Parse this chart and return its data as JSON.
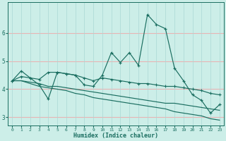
{
  "xlabel": "Humidex (Indice chaleur)",
  "bg_color": "#cceee8",
  "grid_color_h": "#e8b4b4",
  "grid_color_v": "#aad8d4",
  "line_color": "#1a6e60",
  "x_values": [
    0,
    1,
    2,
    3,
    4,
    5,
    6,
    7,
    8,
    9,
    10,
    11,
    12,
    13,
    14,
    15,
    16,
    17,
    18,
    19,
    20,
    21,
    22,
    23
  ],
  "y_main": [
    4.3,
    4.65,
    4.4,
    4.15,
    3.65,
    4.6,
    4.55,
    4.5,
    4.15,
    4.1,
    4.5,
    5.3,
    4.95,
    5.3,
    4.85,
    6.65,
    6.3,
    6.15,
    4.75,
    4.3,
    3.8,
    3.6,
    3.15,
    3.45
  ],
  "y_line2": [
    4.3,
    4.45,
    4.4,
    4.35,
    4.6,
    4.6,
    4.55,
    4.5,
    4.4,
    4.3,
    4.4,
    4.35,
    4.3,
    4.25,
    4.2,
    4.2,
    4.15,
    4.1,
    4.1,
    4.05,
    4.0,
    3.95,
    3.85,
    3.8
  ],
  "y_line3": [
    4.3,
    4.3,
    4.25,
    4.2,
    4.1,
    4.1,
    4.05,
    4.0,
    3.95,
    3.9,
    3.85,
    3.8,
    3.75,
    3.7,
    3.65,
    3.6,
    3.55,
    3.5,
    3.5,
    3.45,
    3.4,
    3.35,
    3.3,
    3.25
  ],
  "y_line4": [
    4.3,
    4.3,
    4.2,
    4.1,
    4.05,
    4.0,
    3.95,
    3.85,
    3.8,
    3.7,
    3.65,
    3.6,
    3.55,
    3.5,
    3.45,
    3.4,
    3.35,
    3.3,
    3.2,
    3.15,
    3.1,
    3.05,
    2.95,
    2.9
  ],
  "ylim": [
    2.7,
    7.1
  ],
  "xlim": [
    -0.5,
    23.5
  ],
  "yticks": [
    3,
    4,
    5,
    6
  ],
  "xticks": [
    0,
    1,
    2,
    3,
    4,
    5,
    6,
    7,
    8,
    9,
    10,
    11,
    12,
    13,
    14,
    15,
    16,
    17,
    18,
    19,
    20,
    21,
    22,
    23
  ]
}
